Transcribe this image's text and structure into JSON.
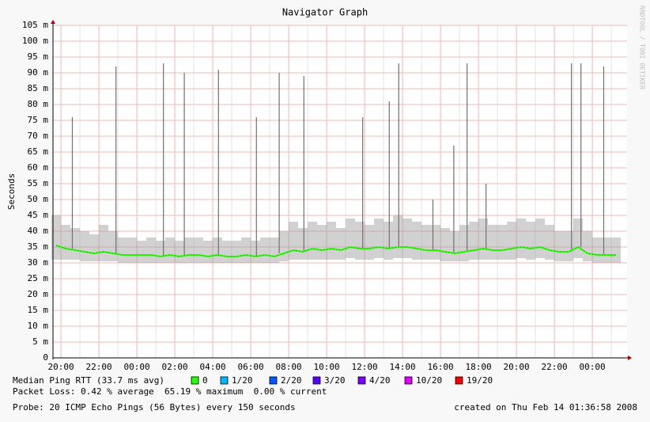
{
  "chart_data": {
    "type": "line",
    "title": "Navigator Graph",
    "y_label": "Seconds",
    "side_note": "RRDTOOL / TOBI OETIKER",
    "xlim": [
      19.58,
      49.83
    ],
    "xticks": [
      {
        "value": 20,
        "label": "20:00"
      },
      {
        "value": 22,
        "label": "22:00"
      },
      {
        "value": 24,
        "label": "00:00"
      },
      {
        "value": 26,
        "label": "02:00"
      },
      {
        "value": 28,
        "label": "04:00"
      },
      {
        "value": 30,
        "label": "06:00"
      },
      {
        "value": 32,
        "label": "08:00"
      },
      {
        "value": 34,
        "label": "10:00"
      },
      {
        "value": 36,
        "label": "12:00"
      },
      {
        "value": 38,
        "label": "14:00"
      },
      {
        "value": 40,
        "label": "16:00"
      },
      {
        "value": 42,
        "label": "18:00"
      },
      {
        "value": 44,
        "label": "20:00"
      },
      {
        "value": 46,
        "label": "22:00"
      },
      {
        "value": 48,
        "label": "00:00"
      }
    ],
    "ylim": [
      0,
      0.105
    ],
    "yticks": [
      0,
      {
        "value": 0.005,
        "label": "5 m"
      },
      {
        "value": 0.01,
        "label": "10 m"
      },
      {
        "value": 0.015,
        "label": "15 m"
      },
      {
        "value": 0.02,
        "label": "20 m"
      },
      {
        "value": 0.025,
        "label": "25 m"
      },
      {
        "value": 0.03,
        "label": "30 m"
      },
      {
        "value": 0.035,
        "label": "35 m"
      },
      {
        "value": 0.04,
        "label": "40 m"
      },
      {
        "value": 0.045,
        "label": "45 m"
      },
      {
        "value": 0.05,
        "label": "50 m"
      },
      {
        "value": 0.055,
        "label": "55 m"
      },
      {
        "value": 0.06,
        "label": "60 m"
      },
      {
        "value": 0.065,
        "label": "65 m"
      },
      {
        "value": 0.07,
        "label": "70 m"
      },
      {
        "value": 0.075,
        "label": "75 m"
      },
      {
        "value": 0.08,
        "label": "80 m"
      },
      {
        "value": 0.085,
        "label": "85 m"
      },
      {
        "value": 0.09,
        "label": "90 m"
      },
      {
        "value": 0.095,
        "label": "95 m"
      },
      {
        "value": 0.1,
        "label": "100 m"
      },
      {
        "value": 0.105,
        "label": "105 m"
      }
    ],
    "grid": true,
    "x": [
      19.75,
      20.25,
      20.75,
      21.25,
      21.75,
      22.25,
      22.75,
      23.25,
      23.75,
      24.25,
      24.75,
      25.25,
      25.75,
      26.25,
      26.75,
      27.25,
      27.75,
      28.25,
      28.75,
      29.25,
      29.75,
      30.25,
      30.75,
      31.25,
      31.75,
      32.25,
      32.75,
      33.25,
      33.75,
      34.25,
      34.75,
      35.25,
      35.75,
      36.25,
      36.75,
      37.25,
      37.75,
      38.25,
      38.75,
      39.25,
      39.75,
      40.25,
      40.75,
      41.25,
      41.75,
      42.25,
      42.75,
      43.25,
      43.75,
      44.25,
      44.75,
      45.25,
      45.75,
      46.25,
      46.75,
      47.25,
      47.75,
      48.25,
      48.75,
      49.25
    ],
    "smoke": {
      "color": "#9a9a9a",
      "low": [
        0.031,
        0.031,
        0.031,
        0.0305,
        0.0305,
        0.0305,
        0.0305,
        0.03,
        0.03,
        0.03,
        0.03,
        0.03,
        0.03,
        0.03,
        0.03,
        0.03,
        0.03,
        0.03,
        0.03,
        0.03,
        0.03,
        0.03,
        0.03,
        0.03,
        0.0305,
        0.031,
        0.031,
        0.031,
        0.031,
        0.031,
        0.031,
        0.0315,
        0.031,
        0.031,
        0.0315,
        0.031,
        0.0315,
        0.0315,
        0.031,
        0.031,
        0.031,
        0.0305,
        0.0305,
        0.0305,
        0.031,
        0.031,
        0.031,
        0.031,
        0.031,
        0.0315,
        0.031,
        0.0315,
        0.031,
        0.0305,
        0.0305,
        0.0315,
        0.0305,
        0.03,
        0.03,
        0.03
      ],
      "high": [
        0.045,
        0.042,
        0.041,
        0.04,
        0.039,
        0.042,
        0.04,
        0.038,
        0.038,
        0.037,
        0.038,
        0.037,
        0.038,
        0.037,
        0.038,
        0.038,
        0.037,
        0.038,
        0.037,
        0.037,
        0.038,
        0.037,
        0.038,
        0.038,
        0.04,
        0.043,
        0.041,
        0.043,
        0.042,
        0.043,
        0.041,
        0.044,
        0.043,
        0.042,
        0.044,
        0.043,
        0.045,
        0.044,
        0.043,
        0.042,
        0.042,
        0.041,
        0.04,
        0.042,
        0.043,
        0.044,
        0.042,
        0.042,
        0.043,
        0.044,
        0.043,
        0.044,
        0.042,
        0.04,
        0.04,
        0.044,
        0.04,
        0.038,
        0.038,
        0.038
      ]
    },
    "spikes": {
      "color": "#707070",
      "x": [
        20.6,
        22.9,
        25.4,
        26.5,
        28.3,
        30.3,
        31.5,
        32.8,
        35.9,
        37.3,
        37.8,
        39.6,
        40.7,
        41.4,
        42.4,
        46.9,
        47.4,
        48.6
      ],
      "values": [
        0.076,
        0.092,
        0.093,
        0.09,
        0.091,
        0.076,
        0.09,
        0.089,
        0.076,
        0.081,
        0.093,
        0.05,
        0.067,
        0.093,
        0.055,
        0.093,
        0.093,
        0.092
      ]
    },
    "series": [
      {
        "name": "Median Ping RTT (33.7 ms avg)",
        "color": "#26ff00",
        "values": [
          0.0355,
          0.0345,
          0.034,
          0.0335,
          0.033,
          0.0335,
          0.033,
          0.0325,
          0.0325,
          0.0325,
          0.0325,
          0.032,
          0.0325,
          0.032,
          0.0325,
          0.0325,
          0.032,
          0.0325,
          0.032,
          0.032,
          0.0325,
          0.032,
          0.0325,
          0.032,
          0.033,
          0.034,
          0.0335,
          0.0345,
          0.034,
          0.0345,
          0.034,
          0.035,
          0.0345,
          0.0345,
          0.035,
          0.0345,
          0.035,
          0.035,
          0.0345,
          0.034,
          0.034,
          0.0335,
          0.033,
          0.0335,
          0.034,
          0.0345,
          0.034,
          0.034,
          0.0345,
          0.035,
          0.0345,
          0.035,
          0.034,
          0.0335,
          0.0335,
          0.035,
          0.033,
          0.0325,
          0.0325,
          0.0325
        ]
      }
    ],
    "loss_legend": [
      {
        "label": "0",
        "color": "#26ff00"
      },
      {
        "label": "1/20",
        "color": "#00b8ff"
      },
      {
        "label": "2/20",
        "color": "#0059ff"
      },
      {
        "label": "3/20",
        "color": "#5e00ff"
      },
      {
        "label": "4/20",
        "color": "#7e00ff"
      },
      {
        "label": "10/20",
        "color": "#dd00ff"
      },
      {
        "label": "19/20",
        "color": "#ff0000"
      }
    ],
    "packet_loss": "Packet Loss: 0.42 % average  65.19 % maximum  0.00 % current",
    "probe": "Probe: 20 ICMP Echo Pings (56 Bytes) every 150 seconds",
    "created": "created on Thu Feb 14 01:36:58 2008"
  }
}
